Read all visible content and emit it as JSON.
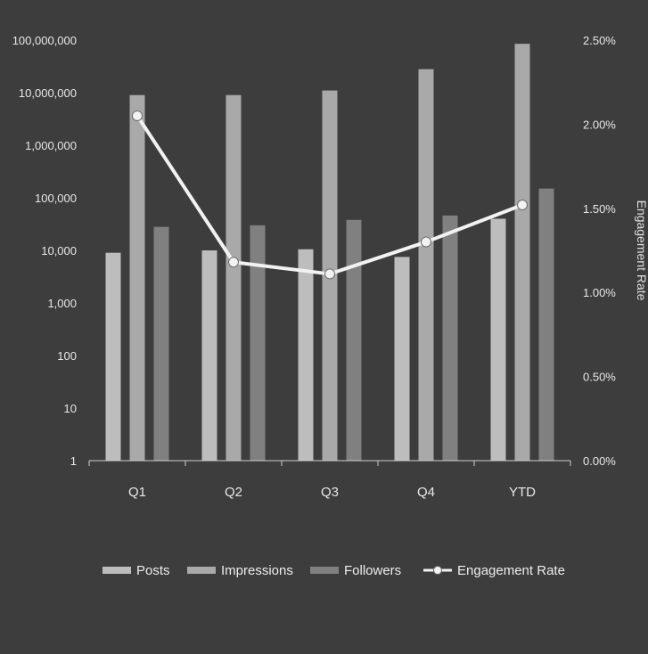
{
  "chart_data": {
    "type": "bar",
    "combo": "bar + line (secondary axis)",
    "categories": [
      "Q1",
      "Q2",
      "Q3",
      "Q4",
      "YTD"
    ],
    "series": [
      {
        "name": "Posts",
        "type": "bar",
        "axis": "left",
        "values": [
          9000,
          10000,
          10500,
          7500,
          40000
        ],
        "color": "#bdbdbd"
      },
      {
        "name": "Impressions",
        "type": "bar",
        "axis": "left",
        "values": [
          9000000,
          9000000,
          11000000,
          28000000,
          85000000
        ],
        "color": "#a9a9a9"
      },
      {
        "name": "Followers",
        "type": "bar",
        "axis": "left",
        "values": [
          28000,
          30000,
          38000,
          46000,
          150000
        ],
        "color": "#808080"
      },
      {
        "name": "Engagement Rate",
        "type": "line",
        "axis": "right",
        "values": [
          0.0205,
          0.0118,
          0.0111,
          0.013,
          0.0152
        ],
        "color": "#f2f2f2"
      }
    ],
    "y_axis_left": {
      "scale": "log",
      "range": [
        1,
        100000000
      ],
      "tick_labels": [
        "1",
        "10",
        "100",
        "1,000",
        "10,000",
        "100,000",
        "1,000,000",
        "10,000,000",
        "100,000,000"
      ]
    },
    "y_axis_right": {
      "range": [
        0,
        0.025
      ],
      "tick_labels": [
        "0.00%",
        "0.50%",
        "1.00%",
        "1.50%",
        "2.00%",
        "2.50%"
      ],
      "label": "Engagement Rate"
    },
    "legend_position": "bottom",
    "grid": false,
    "title": "",
    "xlabel": ""
  }
}
